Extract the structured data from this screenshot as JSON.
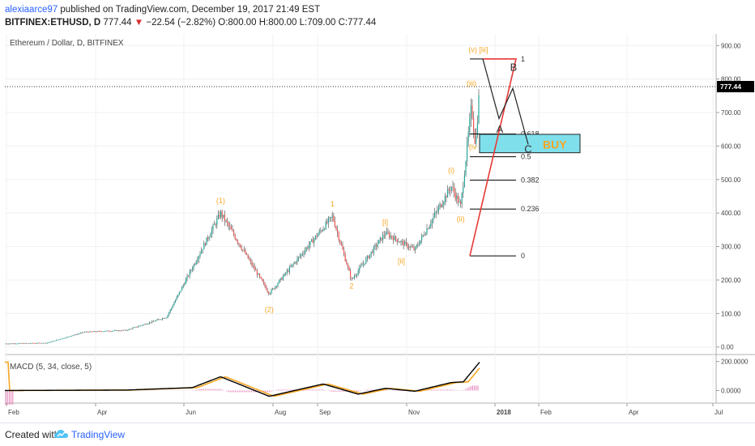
{
  "header": {
    "author": "alexiaarce97",
    "published_text": " published on TradingView.com, December 19, 2017 21:49 EST",
    "symbol": "BITFINEX:ETHUSD, D",
    "last": "777.44",
    "change": "−22.54 (−2.82%)",
    "ohlc": "O:800.00 H:800.00 L:709.00 C:777.44"
  },
  "footer": {
    "created_with": "Created with",
    "brand": "TradingView",
    "logo": "tradingview-cloud-icon"
  },
  "colors": {
    "up": "#26a69a",
    "down": "#ef5350",
    "wave_label": "#f6a623",
    "forecast_line": "#e53935",
    "buy_zone": "#7fe0ec",
    "macd_line": "#000000",
    "macd_signal": "#f6a623",
    "macd_hist": "#e57fb5"
  },
  "chart_data": {
    "type": "candlestick",
    "title": "Ethereum / Dollar, D, BITFINEX",
    "current_price": 777.44,
    "current_price_label": "777.44",
    "x_tick_labels": [
      "Feb",
      "Apr",
      "Jun",
      "Aug",
      "Sep",
      "Nov",
      "2018",
      "Feb",
      "Apr",
      "Jul"
    ],
    "y_ticks": [
      0,
      100,
      200,
      300,
      400,
      500,
      600,
      700,
      800,
      900
    ],
    "y_tick_labels": [
      "0.00",
      "100.00",
      "200.00",
      "300.00",
      "400.00",
      "500.00",
      "600.00",
      "700.00",
      "800.00",
      "900.00"
    ],
    "ylim": [
      -20,
      920
    ],
    "price_path": [
      {
        "month": "2017-01",
        "price": 10
      },
      {
        "month": "2017-02",
        "price": 12
      },
      {
        "month": "2017-03",
        "price": 45
      },
      {
        "month": "2017-04",
        "price": 50
      },
      {
        "month": "2017-05",
        "price": 90
      },
      {
        "month": "2017-06-10",
        "price": 400
      },
      {
        "month": "2017-07-16",
        "price": 160
      },
      {
        "month": "2017-09-01",
        "price": 390
      },
      {
        "month": "2017-09-15",
        "price": 200
      },
      {
        "month": "2017-10-10",
        "price": 340
      },
      {
        "month": "2017-11-01",
        "price": 290
      },
      {
        "month": "2017-11-28",
        "price": 480
      },
      {
        "month": "2017-12-05",
        "price": 420
      },
      {
        "month": "2017-12-13",
        "price": 720
      },
      {
        "month": "2017-12-16",
        "price": 600
      },
      {
        "month": "2017-12-19",
        "price": 777.44
      }
    ],
    "wave_labels": [
      {
        "text": "(1)",
        "date": "2017-06-10",
        "price": 430
      },
      {
        "text": "(2)",
        "date": "2017-07-16",
        "price": 105
      },
      {
        "text": "1",
        "date": "2017-09-01",
        "price": 420
      },
      {
        "text": "2",
        "date": "2017-09-15",
        "price": 175
      },
      {
        "text": "[i]",
        "date": "2017-10-10",
        "price": 365
      },
      {
        "text": "[ii]",
        "date": "2017-10-22",
        "price": 250
      },
      {
        "text": "(i)",
        "date": "2017-11-28",
        "price": 520
      },
      {
        "text": "(ii)",
        "date": "2017-12-05",
        "price": 375
      },
      {
        "text": "(iii)",
        "date": "2017-12-13",
        "price": 780
      },
      {
        "text": "(iv",
        "date": "2017-12-14",
        "price": 590
      },
      {
        "text": "(v) [iii]",
        "date": "2017-12-18",
        "price": 880
      }
    ],
    "forecast_labels": [
      {
        "text": "A",
        "date": "2017-12-31",
        "price": 640
      },
      {
        "text": "B",
        "date": "2018-01-07",
        "price": 825
      },
      {
        "text": "C",
        "date": "2018-01-12",
        "price": 580
      }
    ],
    "fib_levels": [
      {
        "label": "1",
        "price": 860
      },
      {
        "label": "0.618",
        "price": 636
      },
      {
        "label": "0.5",
        "price": 568
      },
      {
        "label": "0.382",
        "price": 498
      },
      {
        "label": "0.236",
        "price": 412
      },
      {
        "label": "0",
        "price": 272
      }
    ],
    "buy_zone": {
      "label": "BUY",
      "price_low": 580,
      "price_high": 635
    },
    "macd": {
      "label": "MACD (5, 34, close, 5)",
      "y_tick_labels": [
        "200.0000",
        "0.0000"
      ],
      "y_ticks": [
        200,
        0
      ],
      "ylim": [
        -70,
        220
      ],
      "path": [
        {
          "month": "2017-01",
          "value": 0
        },
        {
          "month": "2017-04",
          "value": 3
        },
        {
          "month": "2017-05-20",
          "value": 20
        },
        {
          "month": "2017-06-10",
          "value": 95
        },
        {
          "month": "2017-07-16",
          "value": -40
        },
        {
          "month": "2017-08-25",
          "value": 45
        },
        {
          "month": "2017-09-20",
          "value": -25
        },
        {
          "month": "2017-10-10",
          "value": 15
        },
        {
          "month": "2017-11-01",
          "value": -5
        },
        {
          "month": "2017-11-28",
          "value": 55
        },
        {
          "month": "2017-12-07",
          "value": 60
        },
        {
          "month": "2017-12-19",
          "value": 195
        }
      ]
    }
  }
}
